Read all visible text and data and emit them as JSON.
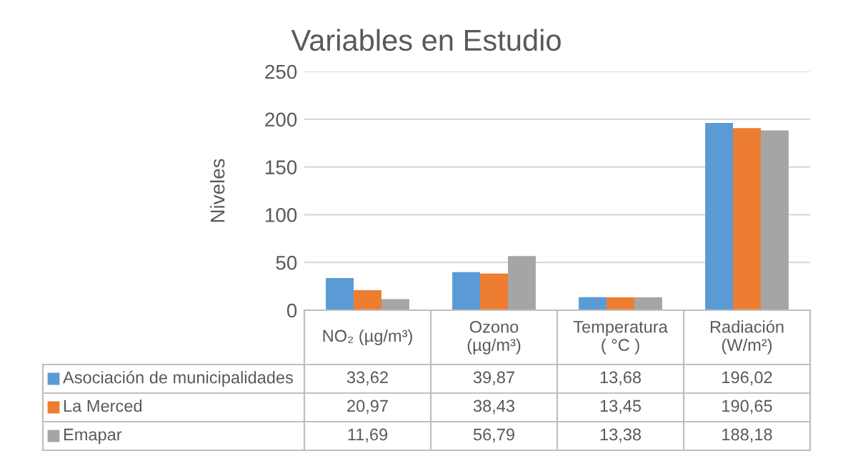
{
  "chart_data": {
    "type": "bar",
    "title": "Variables en Estudio",
    "ylabel": "Niveles",
    "categories": [
      "NO₂ (µg/m³)",
      "Ozono\n(µg/m³)",
      "Temperatura\n( °C )",
      "Radiación\n(W/m²)"
    ],
    "series": [
      {
        "name": "Asociación de municipalidades",
        "color": "#5b9bd5",
        "values": [
          33.62,
          39.87,
          13.68,
          196.02
        ],
        "value_labels": [
          "33,62",
          "39,87",
          "13,68",
          "196,02"
        ]
      },
      {
        "name": "La Merced",
        "color": "#ed7d31",
        "values": [
          20.97,
          38.43,
          13.45,
          190.65
        ],
        "value_labels": [
          "20,97",
          "38,43",
          "13,45",
          "190,65"
        ]
      },
      {
        "name": "Emapar",
        "color": "#a5a5a5",
        "values": [
          11.69,
          56.79,
          13.38,
          188.18
        ],
        "value_labels": [
          "11,69",
          "56,79",
          "13,38",
          "188,18"
        ]
      }
    ],
    "ylim": [
      0,
      250
    ],
    "yticks": [
      0,
      50,
      100,
      150,
      200,
      250
    ],
    "grid": "y",
    "legend": "bottom"
  }
}
